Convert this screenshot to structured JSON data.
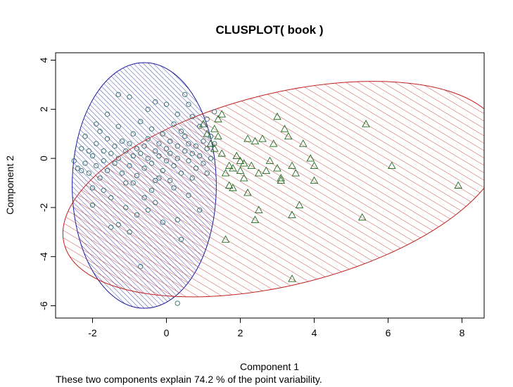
{
  "chart_data": {
    "type": "scatter",
    "title": "CLUSPLOT( book )",
    "xlabel": "Component 1",
    "ylabel": "Component 2",
    "caption": "These two components explain 74.2 % of the point variability.",
    "xlim": [
      -3.0,
      8.6
    ],
    "ylim": [
      -6.5,
      4.3
    ],
    "x_ticks": [
      -2,
      0,
      2,
      4,
      6,
      8
    ],
    "y_ticks": [
      -6,
      -4,
      -2,
      0,
      2,
      4
    ],
    "x_tick_labels": [
      "-2",
      "0",
      "2",
      "4",
      "6",
      "8"
    ],
    "y_tick_labels": [
      "-6",
      "-4",
      "-2",
      "0",
      "2",
      "4"
    ],
    "grid": false,
    "clusters": [
      {
        "marker": "circle",
        "marker_color": "#2e6b6b",
        "ellipse": {
          "cx": -0.6,
          "cy": -1.1,
          "rx": 1.95,
          "ry": 5.0,
          "angle_deg": 0,
          "color": "#1a1a9e",
          "hatch_angle": 45,
          "hatch_spacing": 5
        },
        "points": [
          [
            -2.5,
            -0.1
          ],
          [
            -2.4,
            -0.4
          ],
          [
            -2.3,
            0.4
          ],
          [
            -2.2,
            -0.2
          ],
          [
            -2.2,
            0.9
          ],
          [
            -2.1,
            -0.6
          ],
          [
            -2.0,
            0.1
          ],
          [
            -2.0,
            -1.2
          ],
          [
            -1.9,
            0.6
          ],
          [
            -1.9,
            -0.3
          ],
          [
            -1.8,
            1.1
          ],
          [
            -1.8,
            -0.8
          ],
          [
            -1.7,
            0.3
          ],
          [
            -1.7,
            -0.1
          ],
          [
            -1.6,
            0.8
          ],
          [
            -1.6,
            -0.5
          ],
          [
            -1.5,
            0.2
          ],
          [
            -1.5,
            -1.6
          ],
          [
            -1.4,
            0.5
          ],
          [
            -1.4,
            -0.2
          ],
          [
            -1.3,
            1.3
          ],
          [
            -1.3,
            0.0
          ],
          [
            -1.2,
            0.7
          ],
          [
            -1.2,
            -0.6
          ],
          [
            -1.1,
            0.3
          ],
          [
            -1.1,
            -1.0
          ],
          [
            -1.0,
            0.6
          ],
          [
            -1.0,
            -0.3
          ],
          [
            -0.9,
            1.0
          ],
          [
            -0.9,
            0.1
          ],
          [
            -0.8,
            0.4
          ],
          [
            -0.8,
            -0.7
          ],
          [
            -0.7,
            0.2
          ],
          [
            -0.7,
            1.5
          ],
          [
            -0.6,
            0.5
          ],
          [
            -0.6,
            -0.4
          ],
          [
            -0.5,
            0.0
          ],
          [
            -0.5,
            0.8
          ],
          [
            -0.4,
            -0.2
          ],
          [
            -0.4,
            1.2
          ],
          [
            -0.3,
            0.3
          ],
          [
            -0.3,
            -0.9
          ],
          [
            -0.2,
            0.6
          ],
          [
            -0.2,
            0.1
          ],
          [
            -0.1,
            1.0
          ],
          [
            -0.1,
            -0.5
          ],
          [
            0.0,
            0.4
          ],
          [
            0.0,
            -0.1
          ],
          [
            0.1,
            0.7
          ],
          [
            0.1,
            0.2
          ],
          [
            0.2,
            1.4
          ],
          [
            0.2,
            -0.3
          ],
          [
            0.3,
            0.5
          ],
          [
            0.3,
            0.0
          ],
          [
            0.4,
            1.1
          ],
          [
            0.4,
            -0.6
          ],
          [
            0.5,
            0.3
          ],
          [
            0.5,
            0.9
          ],
          [
            0.6,
            -0.1
          ],
          [
            0.6,
            0.6
          ],
          [
            0.7,
            1.7
          ],
          [
            0.7,
            0.2
          ],
          [
            0.8,
            0.5
          ],
          [
            0.8,
            -0.4
          ],
          [
            0.9,
            1.3
          ],
          [
            0.9,
            0.1
          ],
          [
            1.0,
            0.7
          ],
          [
            1.0,
            -0.2
          ],
          [
            1.1,
            1.6
          ],
          [
            1.1,
            0.4
          ],
          [
            1.2,
            0.9
          ],
          [
            1.2,
            0.0
          ],
          [
            1.3,
            0.6
          ],
          [
            1.3,
            1.9
          ],
          [
            -1.3,
            2.6
          ],
          [
            -1.0,
            2.5
          ],
          [
            -0.5,
            2.0
          ],
          [
            -0.3,
            2.3
          ],
          [
            0.0,
            2.2
          ],
          [
            0.5,
            2.6
          ],
          [
            0.6,
            2.2
          ],
          [
            0.3,
            1.8
          ],
          [
            -2.0,
            -1.9
          ],
          [
            -1.7,
            -1.3
          ],
          [
            -1.5,
            -2.8
          ],
          [
            -1.3,
            -2.7
          ],
          [
            -1.1,
            -2.0
          ],
          [
            -1.0,
            -3.0
          ],
          [
            -0.8,
            -2.3
          ],
          [
            -0.7,
            -4.4
          ],
          [
            -0.6,
            -1.6
          ],
          [
            -0.5,
            -2.1
          ],
          [
            -0.3,
            -1.8
          ],
          [
            -0.1,
            -2.6
          ],
          [
            0.2,
            -1.2
          ],
          [
            0.3,
            -2.5
          ],
          [
            0.4,
            -3.3
          ],
          [
            0.6,
            -1.5
          ],
          [
            0.9,
            -2.1
          ],
          [
            0.3,
            -5.9
          ],
          [
            -0.9,
            -1.0
          ],
          [
            -0.4,
            -1.3
          ],
          [
            -0.2,
            -0.8
          ],
          [
            0.1,
            -0.9
          ],
          [
            0.7,
            -0.8
          ],
          [
            1.1,
            -0.6
          ],
          [
            -2.3,
            -0.5
          ],
          [
            -2.1,
            0.3
          ],
          [
            -1.9,
            1.4
          ],
          [
            -1.6,
            1.8
          ]
        ]
      },
      {
        "marker": "triangle",
        "marker_color": "#1e6b1e",
        "ellipse": {
          "cx": 3.15,
          "cy": -1.25,
          "rx": 6.1,
          "ry": 3.9,
          "angle_deg": -14,
          "color": "#c0201e",
          "hatch_angle": 45,
          "hatch_spacing": 9
        },
        "points": [
          [
            1.0,
            1.4
          ],
          [
            1.1,
            1.0
          ],
          [
            1.2,
            0.6
          ],
          [
            1.3,
            1.2
          ],
          [
            1.3,
            0.4
          ],
          [
            1.4,
            1.6
          ],
          [
            1.4,
            0.9
          ],
          [
            1.5,
            1.8
          ],
          [
            1.5,
            0.2
          ],
          [
            1.6,
            -0.6
          ],
          [
            1.7,
            -0.3
          ],
          [
            1.7,
            -1.1
          ],
          [
            1.8,
            -0.4
          ],
          [
            1.9,
            0.1
          ],
          [
            2.0,
            -0.5
          ],
          [
            2.0,
            -0.1
          ],
          [
            2.1,
            -0.8
          ],
          [
            2.2,
            0.8
          ],
          [
            2.2,
            -1.4
          ],
          [
            2.3,
            -0.3
          ],
          [
            2.4,
            0.7
          ],
          [
            2.4,
            -2.5
          ],
          [
            2.5,
            -0.6
          ],
          [
            2.5,
            -2.1
          ],
          [
            2.6,
            0.8
          ],
          [
            2.8,
            -0.1
          ],
          [
            2.9,
            0.6
          ],
          [
            3.0,
            1.7
          ],
          [
            3.0,
            -0.4
          ],
          [
            3.1,
            -0.8
          ],
          [
            3.2,
            1.2
          ],
          [
            3.3,
            0.9
          ],
          [
            3.4,
            -0.3
          ],
          [
            3.4,
            -2.3
          ],
          [
            3.5,
            -0.6
          ],
          [
            3.6,
            -1.9
          ],
          [
            3.7,
            0.6
          ],
          [
            3.9,
            0.0
          ],
          [
            4.0,
            -0.3
          ],
          [
            4.0,
            -0.9
          ],
          [
            3.4,
            -4.9
          ],
          [
            1.6,
            -3.3
          ],
          [
            1.8,
            -1.2
          ],
          [
            2.1,
            -0.2
          ],
          [
            2.7,
            -0.5
          ],
          [
            5.3,
            -2.4
          ],
          [
            5.4,
            1.4
          ],
          [
            6.1,
            -0.3
          ],
          [
            7.9,
            -1.1
          ],
          [
            3.1,
            -0.9
          ]
        ]
      }
    ]
  }
}
